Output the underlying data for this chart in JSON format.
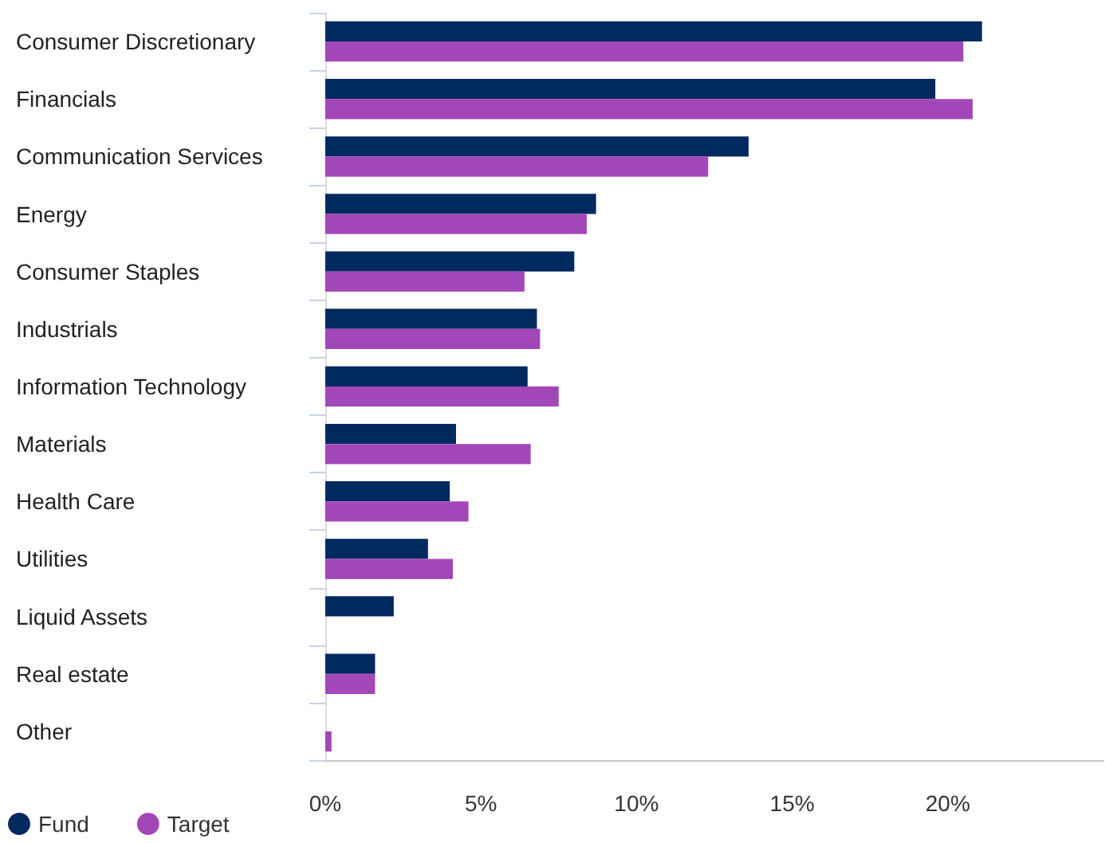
{
  "chart_data": {
    "type": "bar",
    "orientation": "horizontal",
    "categories": [
      "Consumer Discretionary",
      "Financials",
      "Communication Services",
      "Energy",
      "Consumer Staples",
      "Industrials",
      "Information Technology",
      "Materials",
      "Health Care",
      "Utilities",
      "Liquid Assets",
      "Real estate",
      "Other"
    ],
    "series": [
      {
        "name": "Fund",
        "color": "#002960",
        "values": [
          21.1,
          19.6,
          13.6,
          8.7,
          8.0,
          6.8,
          6.5,
          4.2,
          4.0,
          3.3,
          2.2,
          1.6,
          null
        ]
      },
      {
        "name": "Target",
        "color": "#a347b8",
        "values": [
          20.5,
          20.8,
          12.3,
          8.4,
          6.4,
          6.9,
          7.5,
          6.6,
          4.6,
          4.1,
          null,
          1.6,
          0.2
        ]
      }
    ],
    "xlim": [
      0,
      25
    ],
    "xticks": [
      {
        "value": 0,
        "label": "0%"
      },
      {
        "value": 5,
        "label": "5%"
      },
      {
        "value": 10,
        "label": "10%"
      },
      {
        "value": 15,
        "label": "15%"
      },
      {
        "value": 20,
        "label": "20%"
      }
    ],
    "grid": false,
    "legend": "bottom left"
  }
}
